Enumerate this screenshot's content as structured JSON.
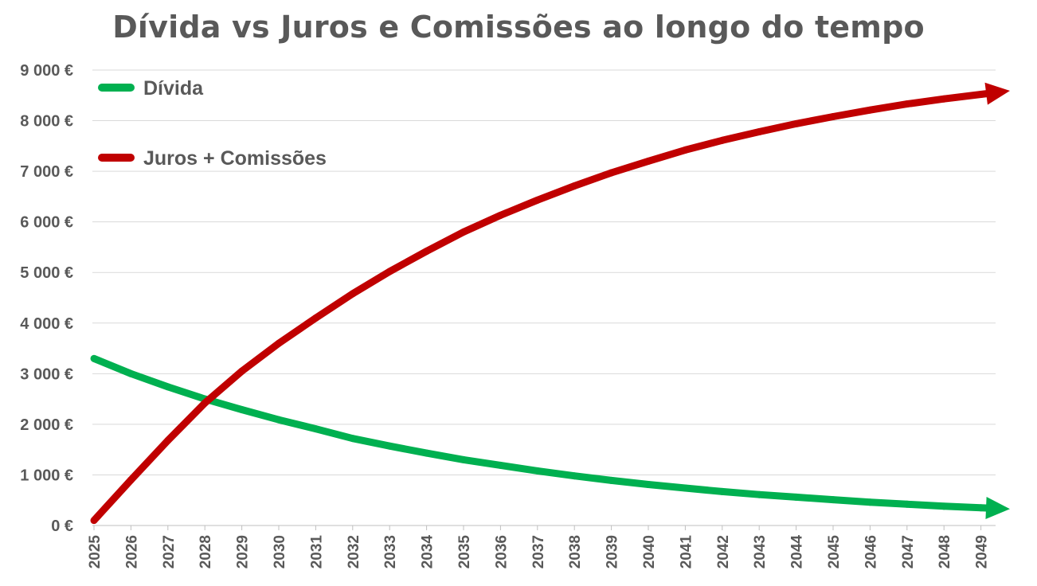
{
  "chart_data": {
    "type": "line",
    "title": "Dívida vs Juros e Comissões ao longo do tempo",
    "xlabel": "",
    "ylabel": "",
    "ylim": [
      0,
      9000
    ],
    "grid": true,
    "legend_position": "top-left",
    "y_ticks": [
      {
        "value": 0,
        "label": "0 €"
      },
      {
        "value": 1000,
        "label": "1 000 €"
      },
      {
        "value": 2000,
        "label": "2 000 €"
      },
      {
        "value": 3000,
        "label": "3 000 €"
      },
      {
        "value": 4000,
        "label": "4 000 €"
      },
      {
        "value": 5000,
        "label": "5 000 €"
      },
      {
        "value": 6000,
        "label": "6 000 €"
      },
      {
        "value": 7000,
        "label": "7 000 €"
      },
      {
        "value": 8000,
        "label": "8 000 €"
      },
      {
        "value": 9000,
        "label": "9 000 €"
      }
    ],
    "x": [
      "2025",
      "2026",
      "2027",
      "2028",
      "2029",
      "2030",
      "2031",
      "2032",
      "2033",
      "2034",
      "2035",
      "2036",
      "2037",
      "2038",
      "2039",
      "2040",
      "2041",
      "2042",
      "2043",
      "2044",
      "2045",
      "2046",
      "2047",
      "2048",
      "2049"
    ],
    "series": [
      {
        "name": "Dívida",
        "color": "#00B050",
        "arrow_end": true,
        "values": [
          3300,
          3000,
          2740,
          2500,
          2290,
          2090,
          1910,
          1720,
          1570,
          1430,
          1300,
          1190,
          1080,
          980,
          890,
          810,
          740,
          670,
          610,
          560,
          510,
          460,
          420,
          380,
          350
        ]
      },
      {
        "name": "Juros + Comissões",
        "color": "#C00000",
        "arrow_end": true,
        "values": [
          100,
          900,
          1680,
          2420,
          3050,
          3600,
          4100,
          4580,
          5020,
          5420,
          5800,
          6130,
          6430,
          6710,
          6970,
          7200,
          7420,
          7610,
          7780,
          7940,
          8080,
          8210,
          8330,
          8430,
          8520
        ]
      }
    ]
  }
}
